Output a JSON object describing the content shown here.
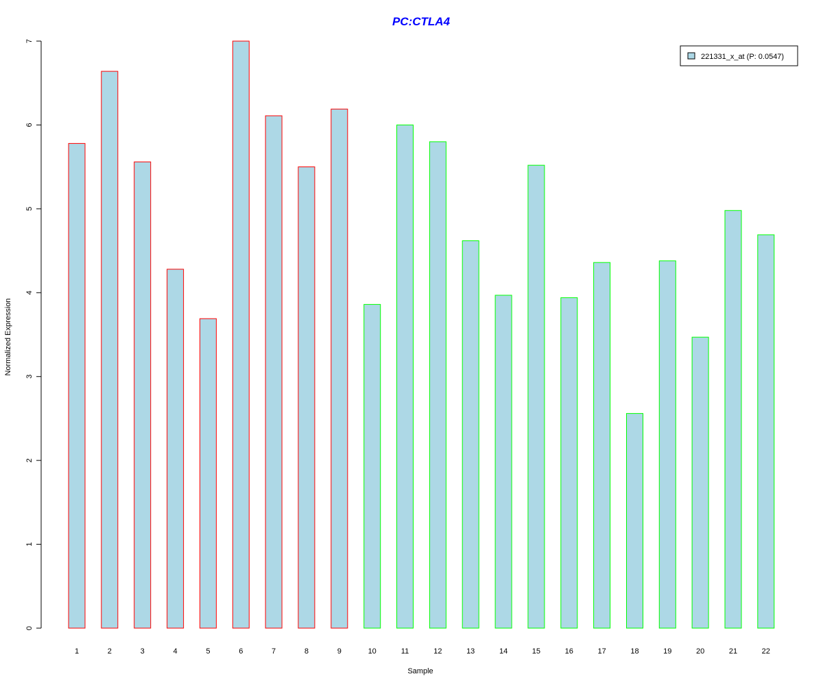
{
  "chart_data": {
    "type": "bar",
    "title": "PC:CTLA4",
    "xlabel": "Sample",
    "ylabel": "Normalized Expression",
    "ylim": [
      0,
      7
    ],
    "yticks": [
      "0",
      "1",
      "2",
      "3",
      "4",
      "5",
      "6",
      "7"
    ],
    "categories": [
      "1",
      "2",
      "3",
      "4",
      "5",
      "6",
      "7",
      "8",
      "9",
      "10",
      "11",
      "12",
      "13",
      "14",
      "15",
      "16",
      "17",
      "18",
      "19",
      "20",
      "21",
      "22"
    ],
    "series": [
      {
        "name": "221331_x_at (P: 0.0547)",
        "values": [
          5.78,
          6.64,
          5.56,
          4.28,
          3.69,
          7.0,
          6.11,
          5.5,
          6.19,
          3.86,
          6.0,
          5.8,
          4.62,
          3.97,
          5.52,
          3.94,
          4.36,
          2.56,
          4.38,
          3.47,
          4.98,
          4.69
        ]
      }
    ],
    "grid": false,
    "legend_position": "top-right",
    "colors": {
      "fill": "#add8e6",
      "group_a_border": "#ff0000",
      "group_b_border": "#00ff00",
      "title": "#0000ff",
      "axis": "#000000"
    },
    "border_groups": [
      "a",
      "a",
      "a",
      "a",
      "a",
      "a",
      "a",
      "a",
      "a",
      "b",
      "b",
      "b",
      "b",
      "b",
      "b",
      "b",
      "b",
      "b",
      "b",
      "b",
      "b",
      "b"
    ]
  }
}
